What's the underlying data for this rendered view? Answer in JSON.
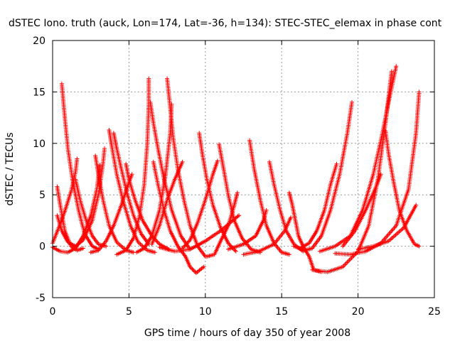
{
  "chart_data": {
    "type": "scatter",
    "title": "dSTEC Iono. truth (auck, Lon=174, Lat=-36, h=134): STEC-STEC_elemax in phase cont",
    "xlabel": "GPS time / hours of day 350 of year 2008",
    "ylabel": "dSTEC  / TECUs",
    "xlim": [
      0,
      25
    ],
    "ylim": [
      -5,
      20
    ],
    "xticks": [
      0,
      5,
      10,
      15,
      20,
      25
    ],
    "yticks": [
      -5,
      0,
      5,
      10,
      15,
      20
    ],
    "grid": true,
    "marker": "+",
    "color": "#ff0000",
    "series": [
      {
        "values": [
          [
            0.3,
            5.8
          ],
          [
            0.5,
            4.0
          ],
          [
            0.8,
            1.5
          ],
          [
            1.2,
            0.0
          ],
          [
            1.6,
            -0.4
          ],
          [
            2.0,
            -0.2
          ]
        ]
      },
      {
        "values": [
          [
            0.6,
            15.8
          ],
          [
            0.8,
            12.5
          ],
          [
            1.0,
            9.5
          ],
          [
            1.3,
            6.5
          ],
          [
            1.7,
            3.5
          ],
          [
            2.1,
            1.2
          ],
          [
            2.6,
            0.0
          ],
          [
            3.0,
            -0.3
          ]
        ]
      },
      {
        "values": [
          [
            0.0,
            -0.1
          ],
          [
            0.5,
            -0.5
          ],
          [
            1.0,
            -0.6
          ],
          [
            1.5,
            -0.2
          ],
          [
            2.0,
            1.0
          ],
          [
            2.5,
            3.0
          ],
          [
            2.9,
            5.6
          ],
          [
            3.1,
            7.9
          ]
        ]
      },
      {
        "values": [
          [
            0.0,
            0.3
          ],
          [
            0.4,
            1.8
          ],
          [
            0.8,
            3.4
          ],
          [
            1.2,
            5.3
          ],
          [
            1.5,
            7.2
          ],
          [
            1.6,
            8.5
          ]
        ]
      },
      {
        "values": [
          [
            0.3,
            3.0
          ],
          [
            0.6,
            1.5
          ],
          [
            1.0,
            0.4
          ],
          [
            1.5,
            0.0
          ],
          [
            2.0,
            0.6
          ],
          [
            2.6,
            2.5
          ],
          [
            3.0,
            5.0
          ],
          [
            3.3,
            8.0
          ],
          [
            3.4,
            9.5
          ]
        ]
      },
      {
        "values": [
          [
            1.5,
            6.5
          ],
          [
            1.8,
            4.5
          ],
          [
            2.2,
            2.5
          ],
          [
            2.6,
            1.0
          ],
          [
            3.0,
            0.2
          ],
          [
            3.5,
            0.0
          ]
        ]
      },
      {
        "values": [
          [
            2.8,
            8.8
          ],
          [
            3.0,
            7.0
          ],
          [
            3.3,
            4.5
          ],
          [
            3.7,
            2.0
          ],
          [
            4.2,
            0.4
          ],
          [
            4.8,
            -0.4
          ],
          [
            5.3,
            -0.6
          ]
        ]
      },
      {
        "values": [
          [
            3.7,
            11.3
          ],
          [
            3.9,
            9.5
          ],
          [
            4.2,
            7.0
          ],
          [
            4.6,
            4.5
          ],
          [
            5.1,
            2.0
          ],
          [
            5.6,
            0.4
          ],
          [
            6.2,
            -0.4
          ],
          [
            6.7,
            -0.6
          ]
        ]
      },
      {
        "values": [
          [
            4.0,
            11.0
          ],
          [
            4.2,
            9.5
          ],
          [
            4.5,
            7.5
          ],
          [
            4.9,
            5.0
          ],
          [
            5.3,
            3.0
          ],
          [
            5.8,
            1.2
          ],
          [
            6.3,
            0.2
          ]
        ]
      },
      {
        "values": [
          [
            4.8,
            8.0
          ],
          [
            5.0,
            6.5
          ],
          [
            5.4,
            4.5
          ],
          [
            5.9,
            2.5
          ],
          [
            6.5,
            1.0
          ],
          [
            7.0,
            0.2
          ],
          [
            7.6,
            -0.3
          ]
        ]
      },
      {
        "values": [
          [
            2.5,
            -0.6
          ],
          [
            3.0,
            -0.4
          ],
          [
            3.5,
            0.5
          ],
          [
            4.0,
            2.0
          ],
          [
            4.5,
            4.0
          ],
          [
            5.0,
            6.2
          ],
          [
            5.2,
            7.0
          ]
        ]
      },
      {
        "values": [
          [
            4.2,
            -0.8
          ],
          [
            4.8,
            -0.4
          ],
          [
            5.3,
            0.8
          ],
          [
            5.7,
            3.0
          ],
          [
            6.0,
            6.0
          ],
          [
            6.2,
            10.0
          ],
          [
            6.3,
            14.0
          ],
          [
            6.3,
            16.3
          ]
        ]
      },
      {
        "values": [
          [
            5.5,
            -0.6
          ],
          [
            6.0,
            -0.2
          ],
          [
            6.5,
            1.0
          ],
          [
            7.0,
            3.5
          ],
          [
            7.4,
            7.0
          ],
          [
            7.7,
            11.0
          ],
          [
            7.8,
            13.8
          ]
        ]
      },
      {
        "values": [
          [
            6.4,
            14.0
          ],
          [
            6.6,
            12.0
          ],
          [
            6.9,
            9.5
          ],
          [
            7.3,
            6.5
          ],
          [
            7.8,
            3.5
          ],
          [
            8.4,
            1.0
          ],
          [
            9.0,
            -0.3
          ]
        ]
      },
      {
        "values": [
          [
            7.5,
            16.3
          ],
          [
            7.7,
            13.5
          ],
          [
            7.9,
            10.5
          ],
          [
            8.2,
            7.5
          ],
          [
            8.6,
            4.5
          ],
          [
            9.0,
            2.0
          ],
          [
            9.5,
            0.0
          ],
          [
            10.0,
            -1.0
          ]
        ]
      },
      {
        "values": [
          [
            6.6,
            8.2
          ],
          [
            6.9,
            6.0
          ],
          [
            7.3,
            3.5
          ],
          [
            7.7,
            1.5
          ],
          [
            8.2,
            0.0
          ],
          [
            8.7,
            -1.0
          ],
          [
            9.0,
            -2.0
          ],
          [
            9.4,
            -2.6
          ],
          [
            9.9,
            -2.0
          ]
        ]
      },
      {
        "values": [
          [
            6.5,
            0.2
          ],
          [
            7.0,
            2.0
          ],
          [
            7.5,
            4.5
          ],
          [
            8.0,
            6.5
          ],
          [
            8.5,
            8.2
          ]
        ]
      },
      {
        "values": [
          [
            8.5,
            -0.2
          ],
          [
            9.0,
            0.6
          ],
          [
            9.5,
            2.3
          ],
          [
            10.0,
            4.5
          ],
          [
            10.5,
            7.0
          ],
          [
            10.8,
            8.3
          ]
        ]
      },
      {
        "values": [
          [
            9.6,
            11.0
          ],
          [
            9.8,
            9.0
          ],
          [
            10.1,
            6.5
          ],
          [
            10.5,
            4.0
          ],
          [
            11.0,
            1.8
          ],
          [
            11.5,
            0.3
          ],
          [
            12.0,
            -0.5
          ]
        ]
      },
      {
        "values": [
          [
            10.1,
            -1.0
          ],
          [
            10.6,
            -0.8
          ],
          [
            11.0,
            0.5
          ],
          [
            11.5,
            2.0
          ],
          [
            11.9,
            4.0
          ],
          [
            12.1,
            5.2
          ]
        ]
      },
      {
        "values": [
          [
            10.9,
            9.9
          ],
          [
            11.2,
            7.5
          ],
          [
            11.5,
            5.0
          ],
          [
            11.9,
            2.5
          ],
          [
            12.4,
            0.8
          ],
          [
            13.0,
            -0.3
          ],
          [
            13.6,
            -0.6
          ]
        ]
      },
      {
        "values": [
          [
            7.0,
            -0.1
          ],
          [
            8.0,
            -0.5
          ],
          [
            9.0,
            -0.3
          ],
          [
            10.0,
            0.5
          ],
          [
            11.0,
            1.5
          ],
          [
            11.8,
            2.5
          ],
          [
            12.2,
            3.0
          ]
        ]
      },
      {
        "values": [
          [
            12.9,
            10.3
          ],
          [
            13.2,
            7.5
          ],
          [
            13.6,
            4.5
          ],
          [
            14.0,
            2.0
          ],
          [
            14.5,
            0.3
          ],
          [
            15.0,
            -0.6
          ],
          [
            15.5,
            -0.8
          ]
        ]
      },
      {
        "values": [
          [
            11.5,
            -0.3
          ],
          [
            12.5,
            0.2
          ],
          [
            13.3,
            1.0
          ],
          [
            13.8,
            2.5
          ],
          [
            14.0,
            3.5
          ]
        ]
      },
      {
        "values": [
          [
            14.2,
            8.2
          ],
          [
            14.5,
            6.0
          ],
          [
            14.9,
            3.5
          ],
          [
            15.3,
            1.5
          ],
          [
            15.8,
            0.2
          ],
          [
            16.4,
            -0.5
          ]
        ]
      },
      {
        "values": [
          [
            15.5,
            5.2
          ],
          [
            15.7,
            4.0
          ],
          [
            15.9,
            2.5
          ],
          [
            16.1,
            1.0
          ],
          [
            16.4,
            0.0
          ],
          [
            16.8,
            -1.0
          ],
          [
            17.1,
            -2.3
          ],
          [
            17.6,
            -2.5
          ]
        ]
      },
      {
        "values": [
          [
            12.5,
            -0.8
          ],
          [
            13.5,
            -0.5
          ],
          [
            14.5,
            0.2
          ],
          [
            15.2,
            1.5
          ],
          [
            15.6,
            2.8
          ]
        ]
      },
      {
        "values": [
          [
            15.8,
            0.0
          ],
          [
            16.5,
            -0.4
          ],
          [
            17.0,
            -0.2
          ],
          [
            17.6,
            1.0
          ],
          [
            18.2,
            3.5
          ],
          [
            18.8,
            7.0
          ],
          [
            19.3,
            11.0
          ],
          [
            19.6,
            14.0
          ]
        ]
      },
      {
        "values": [
          [
            16.2,
            -0.2
          ],
          [
            16.8,
            0.3
          ],
          [
            17.3,
            1.5
          ],
          [
            17.8,
            3.5
          ],
          [
            18.2,
            6.0
          ],
          [
            18.6,
            8.0
          ]
        ]
      },
      {
        "values": [
          [
            17.0,
            -2.3
          ],
          [
            18.0,
            -2.5
          ],
          [
            19.0,
            -2.0
          ],
          [
            20.0,
            -0.5
          ],
          [
            20.7,
            2.0
          ],
          [
            21.3,
            6.5
          ],
          [
            21.8,
            12.0
          ],
          [
            22.2,
            17.0
          ]
        ]
      },
      {
        "values": [
          [
            17.5,
            -0.5
          ],
          [
            18.5,
            0.0
          ],
          [
            19.5,
            1.0
          ],
          [
            20.3,
            3.5
          ],
          [
            21.0,
            7.0
          ],
          [
            21.6,
            11.0
          ],
          [
            22.0,
            14.0
          ],
          [
            22.5,
            17.5
          ]
        ]
      },
      {
        "values": [
          [
            18.5,
            -0.7
          ],
          [
            19.5,
            -0.8
          ],
          [
            20.5,
            -0.5
          ],
          [
            21.5,
            0.3
          ],
          [
            22.5,
            2.0
          ],
          [
            23.3,
            5.5
          ],
          [
            23.8,
            11.0
          ],
          [
            24.0,
            15.0
          ]
        ]
      },
      {
        "values": [
          [
            21.8,
            11.2
          ],
          [
            22.0,
            9.0
          ],
          [
            22.3,
            6.5
          ],
          [
            22.7,
            3.5
          ],
          [
            23.2,
            1.5
          ],
          [
            23.7,
            0.2
          ],
          [
            24.0,
            0.0
          ]
        ]
      },
      {
        "values": [
          [
            20.0,
            -0.3
          ],
          [
            21.0,
            0.0
          ],
          [
            22.0,
            0.5
          ],
          [
            23.0,
            1.8
          ],
          [
            23.8,
            4.0
          ]
        ]
      },
      {
        "values": [
          [
            19.0,
            0.0
          ],
          [
            19.8,
            1.5
          ],
          [
            20.5,
            3.5
          ],
          [
            21.1,
            5.5
          ],
          [
            21.5,
            7.0
          ]
        ]
      }
    ]
  }
}
